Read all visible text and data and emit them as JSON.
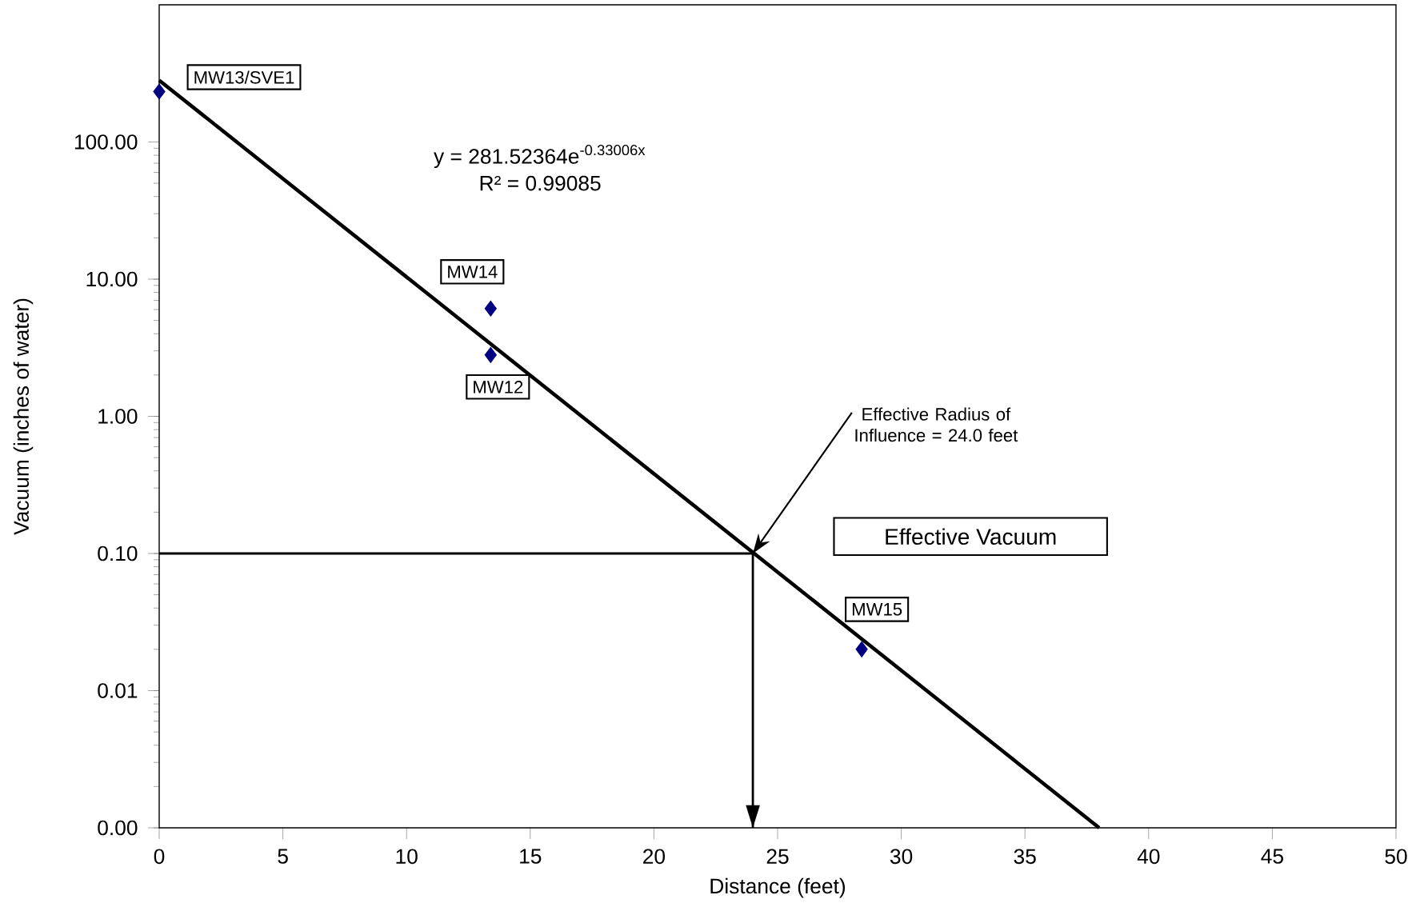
{
  "chart_data": {
    "type": "scatter",
    "xlabel": "Distance (feet)",
    "ylabel": "Vacuum (inches of water)",
    "log": "y",
    "grid": false,
    "xlim": [
      0,
      50
    ],
    "xticks": [
      0,
      5,
      10,
      15,
      20,
      25,
      30,
      35,
      40,
      45,
      50
    ],
    "ylim": [
      0.001,
      1000
    ],
    "yticks": [
      {
        "value": 0.001,
        "label": "0.00"
      },
      {
        "value": 0.01,
        "label": "0.01"
      },
      {
        "value": 0.1,
        "label": "0.10"
      },
      {
        "value": 1,
        "label": "1.00"
      },
      {
        "value": 10,
        "label": "10.00"
      },
      {
        "value": 100,
        "label": "100.00"
      }
    ],
    "series": [
      {
        "type": "scatter",
        "color": "#000080",
        "marker": "diamond",
        "x": [
          0,
          13.4,
          13.4,
          28.4
        ],
        "values": [
          233,
          6.1,
          2.8,
          0.02
        ]
      },
      {
        "type": "line",
        "color": "#000000",
        "x": [
          0,
          38.0
        ],
        "values": [
          281.5,
          0.001
        ]
      },
      {
        "type": "line",
        "color": "#000000",
        "x": [
          0,
          24,
          24
        ],
        "values": [
          0.1,
          0.1,
          0.001
        ]
      }
    ],
    "annotations": [
      "y = 281.52364e$^{-0.33006x}$",
      "R² = 0.99085",
      "Effective Radius of Influence = 24.0 feet",
      "Effective Vacuum",
      {
        "text": "MW13/SVE1",
        "x": 0,
        "y": 233
      },
      {
        "text": "MW14",
        "x": 13.4,
        "y": 6.1
      },
      {
        "text": "MW12",
        "x": 13.4,
        "y": 2.8
      },
      {
        "text": "MW15",
        "x": 28.4,
        "y": 0.02
      }
    ]
  }
}
